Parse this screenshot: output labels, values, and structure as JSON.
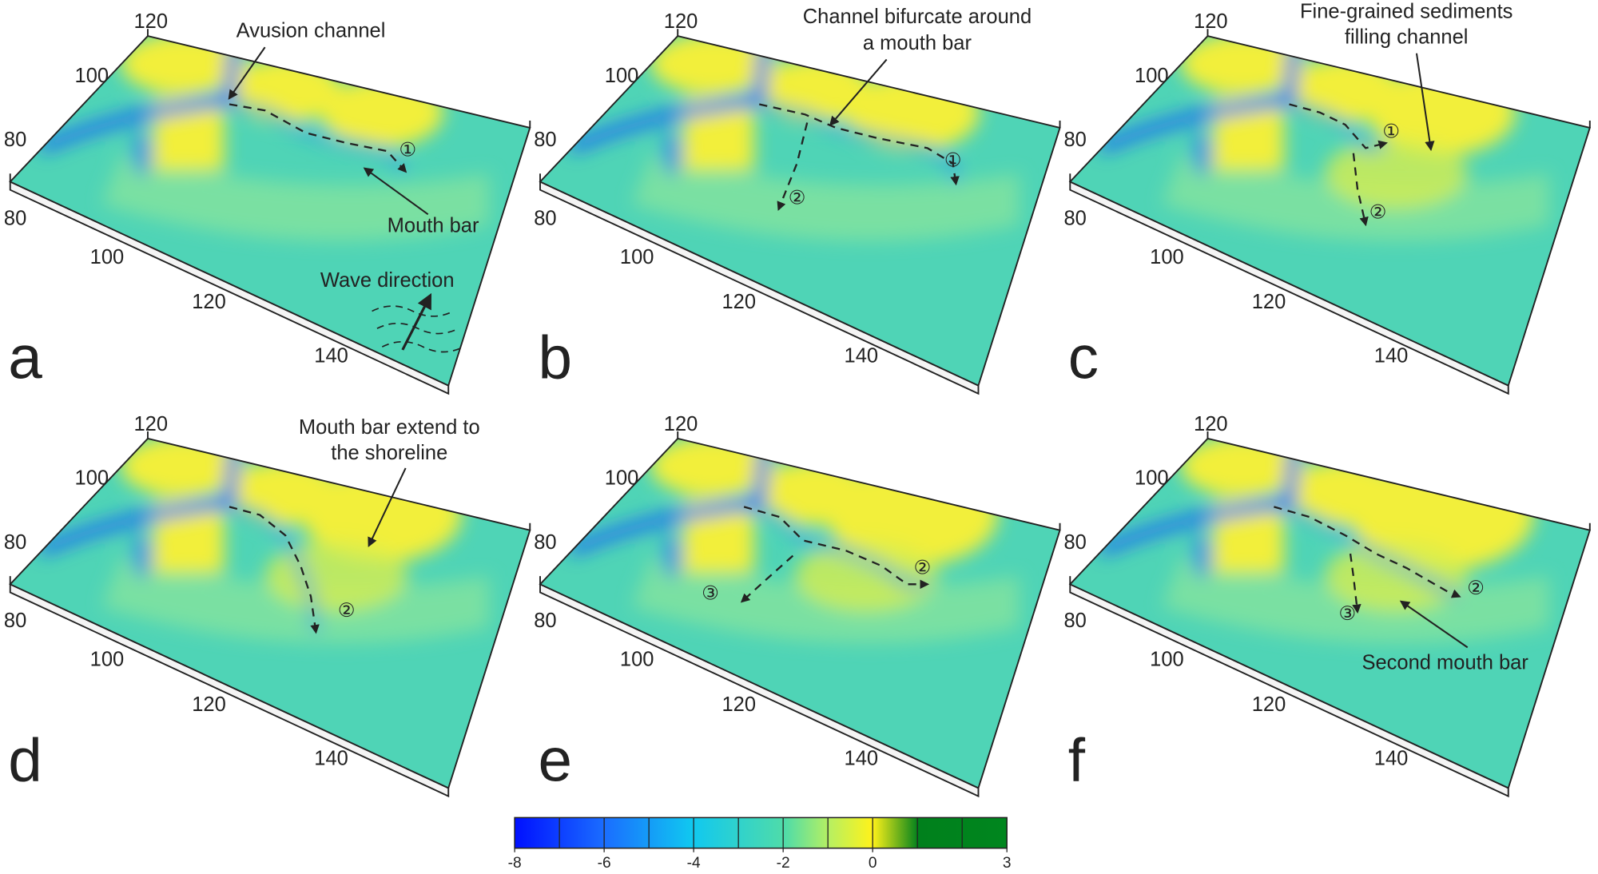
{
  "panels": [
    {
      "letter": "a",
      "annotations": [
        [
          "Avusion channel"
        ],
        [
          "Mouth bar"
        ],
        [
          "Wave direction"
        ]
      ],
      "markers": [
        "①"
      ]
    },
    {
      "letter": "b",
      "annotations": [
        [
          "Channel bifurcate around",
          "a mouth bar"
        ]
      ],
      "markers": [
        "①",
        "②"
      ]
    },
    {
      "letter": "c",
      "annotations": [
        [
          "Fine-grained sediments",
          "filling channel"
        ]
      ],
      "markers": [
        "①",
        "②"
      ]
    },
    {
      "letter": "d",
      "annotations": [
        [
          "Mouth bar extend to",
          "the shoreline"
        ]
      ],
      "markers": [
        "②"
      ]
    },
    {
      "letter": "e",
      "annotations": [],
      "markers": [
        "②",
        "③"
      ]
    },
    {
      "letter": "f",
      "annotations": [
        [
          "Second mouth bar"
        ]
      ],
      "markers": [
        "②",
        "③"
      ]
    }
  ],
  "axes": {
    "depth_ticks": [
      "120",
      "100",
      "80"
    ],
    "front_ticks": [
      "80",
      "100",
      "120",
      "140"
    ]
  },
  "colorbar": {
    "range": [
      -8,
      3
    ],
    "ticks": [
      -8,
      -6,
      -4,
      -2,
      0,
      3
    ]
  }
}
